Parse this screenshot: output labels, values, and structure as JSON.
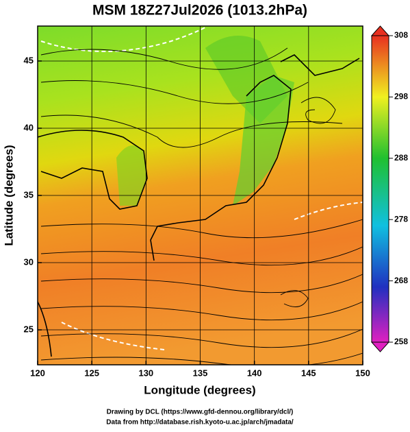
{
  "title": "MSM 18Z27Jul2026 (1013.2hPa)",
  "x_axis": {
    "label": "Longitude (degrees)",
    "lim": [
      120,
      150
    ],
    "ticks": [
      120,
      125,
      130,
      135,
      140,
      145,
      150
    ]
  },
  "y_axis": {
    "label": "Latitude  (degrees)",
    "lim": [
      22.4,
      47.6
    ],
    "ticks": [
      25,
      30,
      35,
      40,
      45
    ]
  },
  "colorbar": {
    "lim": [
      258,
      308
    ],
    "ticks": [
      258,
      268,
      278,
      288,
      298,
      308
    ]
  },
  "credits": [
    "Drawing by DCL (https://www.gfd-dennou.org/library/dcl/)",
    "Data from http://database.rish.kyoto-u.ac.jp/arch/jmadata/"
  ]
}
